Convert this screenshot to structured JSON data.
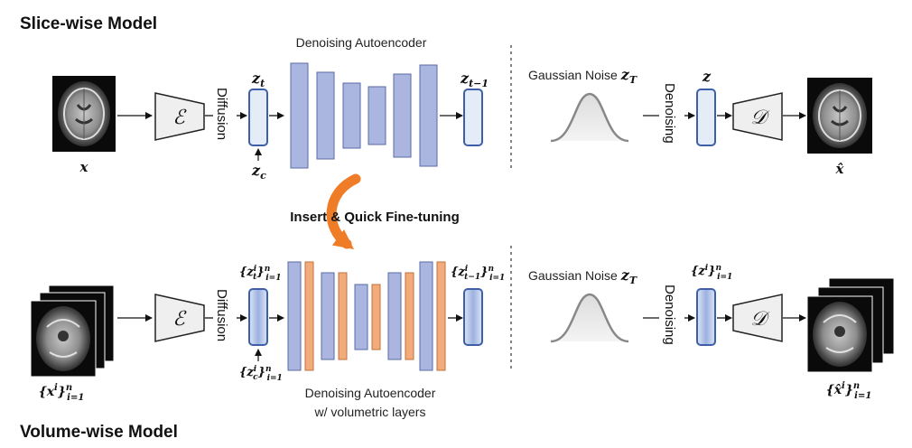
{
  "titles": {
    "slice": "Slice-wise Model",
    "volume": "Volume-wise Model"
  },
  "slice": {
    "input_label": "x",
    "encoder_symbol": "ℰ",
    "diffusion_label": "Diffusion",
    "zt_label": "z",
    "zt_sub": "t",
    "zc_label": "z",
    "zc_sub": "c",
    "dae_label": "Denoising Autoencoder",
    "zt1_label": "z",
    "zt1_sub": "t−1",
    "noise_label": "Gaussian Noise ",
    "noise_sym": "z",
    "noise_sub": "T",
    "denoising_label": "Denoising",
    "z_label": "z",
    "decoder_symbol": "𝒟",
    "output_label": "x̂"
  },
  "transfer_label": "Insert & Quick Fine-tuning",
  "volume": {
    "input_label": "{x",
    "input_sup": "i",
    "input_close": "}",
    "input_range_sup": "n",
    "input_range_sub": "i=1",
    "encoder_symbol": "ℰ",
    "diffusion_label": "Diffusion",
    "zt_label": "{z",
    "zt_sup": "i",
    "zt_sub": "t",
    "zt_range_sup": "n",
    "zt_range_sub": "i=1",
    "zc_label": "{z",
    "zc_sup": "i",
    "zc_sub": "c",
    "zc_range_sup": "n",
    "zc_range_sub": "i=1",
    "zt1_label": "{z",
    "zt1_sup": "i",
    "zt1_sub": "t−1",
    "zt1_range_sup": "n",
    "zt1_range_sub": "i=1",
    "dae_label_line1": "Denoising Autoencoder",
    "dae_label_line2": "w/ volumetric layers",
    "noise_label": "Gaussian Noise ",
    "noise_sym": "z",
    "noise_sub": "T",
    "denoising_label": "Denoising",
    "z_label": "{z",
    "z_sup": "i",
    "z_range_sup": "n",
    "z_range_sub": "i=1",
    "decoder_symbol": "𝒟",
    "output_label": "{x̂",
    "output_sup": "i",
    "output_range_sup": "n",
    "output_range_sub": "i=1"
  },
  "colors": {
    "block_blue": "#aab6df",
    "block_orange": "#f2ab7a",
    "latent_fill": "#e4ecf8",
    "latent_stroke": "#3d5fa8",
    "arrow_orange": "#ef7d27",
    "trapezoid_fill": "#efefef",
    "gaussian": "#888888"
  }
}
